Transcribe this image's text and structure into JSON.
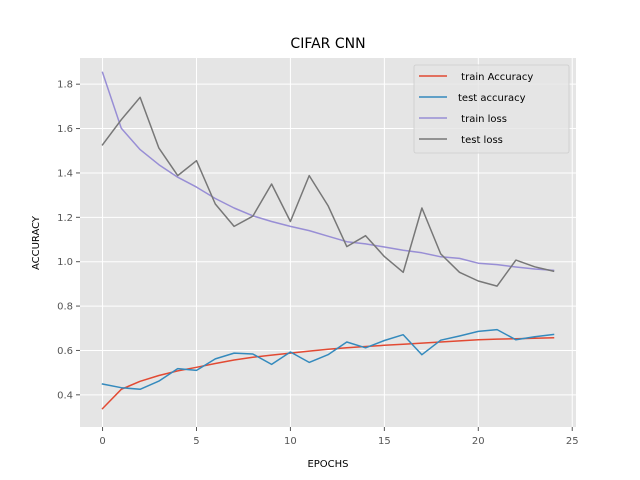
{
  "chart_data": {
    "type": "line",
    "title": "CIFAR CNN",
    "xlabel": "EPOCHS",
    "ylabel": "ACCURACY",
    "xlim": [
      -1.2,
      25.2
    ],
    "ylim": [
      0.255,
      1.918
    ],
    "xticks": [
      0,
      5,
      10,
      15,
      20,
      25
    ],
    "yticks": [
      0.4,
      0.6,
      0.8,
      1.0,
      1.2,
      1.4,
      1.6,
      1.8
    ],
    "xtick_labels": [
      "0",
      "5",
      "10",
      "15",
      "20",
      "25"
    ],
    "ytick_labels": [
      "0.4",
      "0.6",
      "0.8",
      "1.0",
      "1.2",
      "1.4",
      "1.6",
      "1.8"
    ],
    "grid": true,
    "legend_position": "top-right",
    "x": [
      0,
      1,
      2,
      3,
      4,
      5,
      6,
      7,
      8,
      9,
      10,
      11,
      12,
      13,
      14,
      15,
      16,
      17,
      18,
      19,
      20,
      21,
      22,
      23,
      24
    ],
    "series": [
      {
        "name": " train Accuracy",
        "color": "#E24A33",
        "values": [
          0.338,
          0.425,
          0.461,
          0.487,
          0.508,
          0.524,
          0.541,
          0.557,
          0.569,
          0.579,
          0.588,
          0.597,
          0.605,
          0.612,
          0.618,
          0.623,
          0.628,
          0.633,
          0.638,
          0.643,
          0.648,
          0.651,
          0.653,
          0.655,
          0.657
        ]
      },
      {
        "name": "test accuracy",
        "color": "#348ABD",
        "values": [
          0.449,
          0.432,
          0.425,
          0.462,
          0.518,
          0.51,
          0.562,
          0.588,
          0.584,
          0.537,
          0.593,
          0.546,
          0.581,
          0.638,
          0.612,
          0.645,
          0.671,
          0.581,
          0.646,
          0.665,
          0.686,
          0.694,
          0.648,
          0.662,
          0.672
        ]
      },
      {
        "name": " train loss",
        "color": "#988ED5",
        "values": [
          1.853,
          1.601,
          1.505,
          1.437,
          1.381,
          1.336,
          1.285,
          1.242,
          1.207,
          1.181,
          1.159,
          1.14,
          1.115,
          1.09,
          1.08,
          1.066,
          1.052,
          1.04,
          1.022,
          1.015,
          0.993,
          0.987,
          0.976,
          0.967,
          0.961
        ]
      },
      {
        "name": " test loss",
        "color": "#777777",
        "values": [
          1.527,
          1.64,
          1.741,
          1.512,
          1.388,
          1.455,
          1.26,
          1.159,
          1.205,
          1.35,
          1.181,
          1.388,
          1.253,
          1.068,
          1.117,
          1.023,
          0.952,
          1.242,
          1.035,
          0.952,
          0.913,
          0.89,
          1.007,
          0.977,
          0.957
        ]
      }
    ]
  },
  "colors": {
    "plot_background": "#E5E5E5",
    "grid": "#FFFFFF"
  }
}
